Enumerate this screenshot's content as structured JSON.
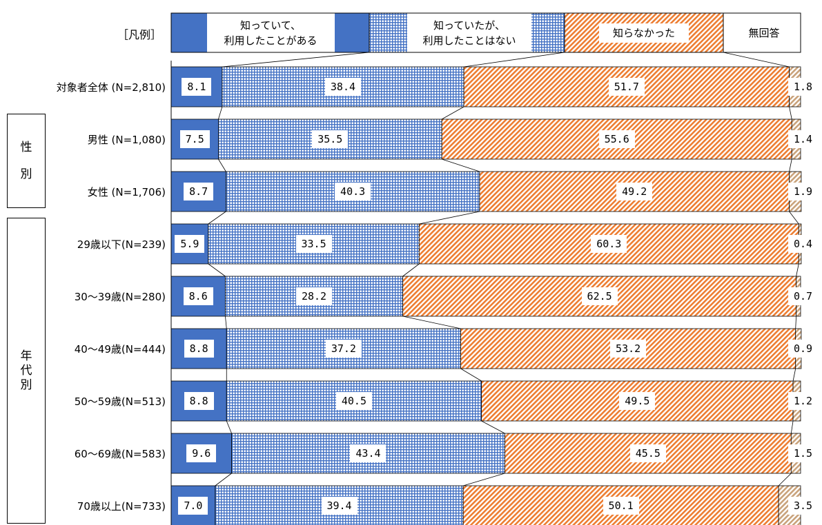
{
  "legend": {
    "caption": "［凡例］",
    "items": [
      {
        "line1": "知っていて、",
        "line2": "利用したことがある"
      },
      {
        "line1": "知っていたが、",
        "line2": "利用したことはない"
      },
      {
        "line1": "知らなかった",
        "line2": ""
      },
      {
        "line1": "無回答",
        "line2": ""
      }
    ]
  },
  "groups": [
    {
      "label": [
        "性",
        "別"
      ]
    },
    {
      "label": [
        "年",
        "代",
        "別"
      ]
    }
  ],
  "colors": {
    "used": "#4472c4",
    "knew": "#4472c4",
    "unknown": "#ed7d31",
    "noanswer": "#c9a27a",
    "border": "#000000"
  },
  "chart_data": {
    "type": "bar",
    "stacked": true,
    "orientation": "horizontal",
    "percent": true,
    "xlim": [
      0,
      100
    ],
    "categories": [
      "対象者全体 (N=2,810)",
      "男性 (N=1,080)",
      "女性 (N=1,706)",
      "29歳以下(N=239)",
      "30～39歳(N=280)",
      "40～49歳(N=444)",
      "50～59歳(N=513)",
      "60～69歳(N=583)",
      "70歳以上(N=733)"
    ],
    "series": [
      {
        "name": "知っていて、利用したことがある",
        "values": [
          8.1,
          7.5,
          8.7,
          5.9,
          8.6,
          8.8,
          8.8,
          9.6,
          7.0
        ]
      },
      {
        "name": "知っていたが、利用したことはない",
        "values": [
          38.4,
          35.5,
          40.3,
          33.5,
          28.2,
          37.2,
          40.5,
          43.4,
          39.4
        ]
      },
      {
        "name": "知らなかった",
        "values": [
          51.7,
          55.6,
          49.2,
          60.3,
          62.5,
          53.2,
          49.5,
          45.5,
          50.1
        ]
      },
      {
        "name": "無回答",
        "values": [
          1.8,
          1.4,
          1.9,
          0.4,
          0.7,
          0.9,
          1.2,
          1.5,
          3.5
        ]
      }
    ],
    "labels": [
      [
        "8.1",
        "38.4",
        "51.7",
        "1.8"
      ],
      [
        "7.5",
        "35.5",
        "55.6",
        "1.4"
      ],
      [
        "8.7",
        "40.3",
        "49.2",
        "1.9"
      ],
      [
        "5.9",
        "33.5",
        "60.3",
        "0.4"
      ],
      [
        "8.6",
        "28.2",
        "62.5",
        "0.7"
      ],
      [
        "8.8",
        "37.2",
        "53.2",
        "0.9"
      ],
      [
        "8.8",
        "40.5",
        "49.5",
        "1.2"
      ],
      [
        "9.6",
        "43.4",
        "45.5",
        "1.5"
      ],
      [
        "7.0",
        "39.4",
        "50.1",
        "3.5"
      ]
    ]
  }
}
